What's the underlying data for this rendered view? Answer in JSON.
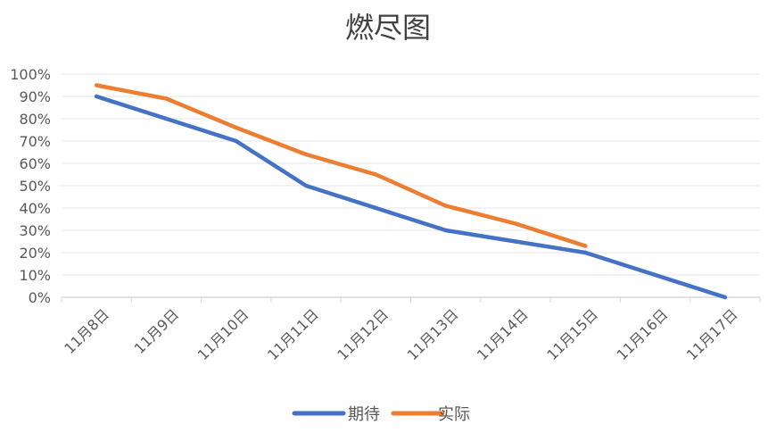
{
  "chart_data": {
    "type": "line",
    "title": "燃尽图",
    "categories": [
      "11月8日",
      "11月9日",
      "11月10日",
      "11月11日",
      "11月12日",
      "11月13日",
      "11月14日",
      "11月15日",
      "11月16日",
      "11月17日"
    ],
    "yticks": [
      "0%",
      "10%",
      "20%",
      "30%",
      "40%",
      "50%",
      "60%",
      "70%",
      "80%",
      "90%",
      "100%"
    ],
    "ylim": [
      0,
      100
    ],
    "grid": true,
    "legend_position": "bottom",
    "series": [
      {
        "name": "期待",
        "color": "#4472C4",
        "values": [
          90,
          80,
          70,
          50,
          40,
          30,
          25,
          20,
          10,
          0
        ]
      },
      {
        "name": "实际",
        "color": "#ED7D31",
        "values": [
          95,
          89,
          76,
          64,
          55,
          41,
          33,
          23,
          null,
          null
        ]
      }
    ]
  }
}
